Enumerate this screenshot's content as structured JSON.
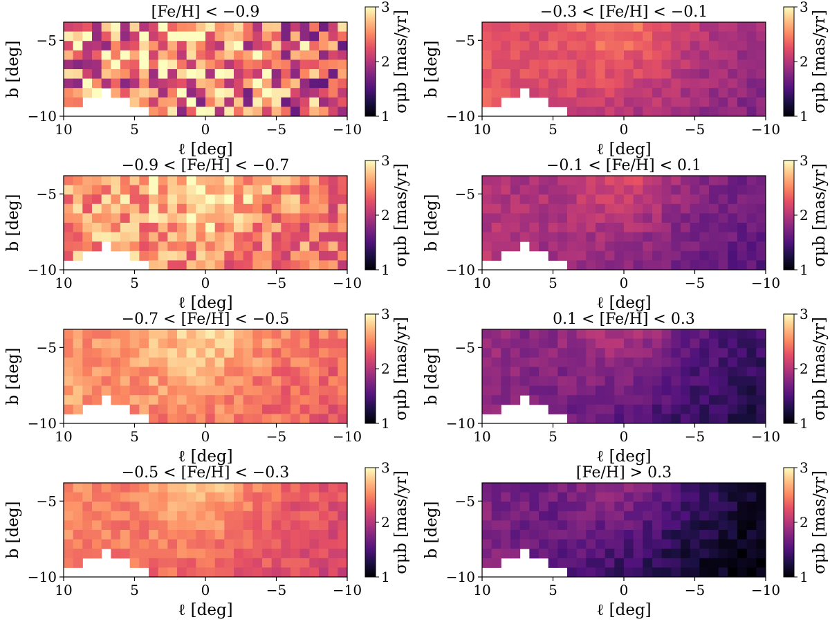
{
  "chart_data": [
    {
      "type": "heatmap",
      "title": "[Fe/H] < −0.9",
      "xlabel": "ℓ [deg]",
      "ylabel": "b [deg]",
      "xlim": [
        10,
        -10
      ],
      "ylim": [
        -10,
        -3.8
      ],
      "xticks": [
        "10",
        "5",
        "0",
        "−5",
        "−10"
      ],
      "yticks": [
        "−10",
        "−5"
      ],
      "colorbar": {
        "label": "σμb [mas/yr]",
        "range": [
          1,
          3
        ],
        "ticks": [
          "1",
          "2",
          "3"
        ],
        "colormap": "magma"
      },
      "grid": {
        "nx": 30,
        "ny": 10
      },
      "level": 2.5,
      "variability": 0.7,
      "right_decline": 0.3,
      "seed": 11,
      "missing_fraction": 0.0
    },
    {
      "type": "heatmap",
      "title": "−0.9 < [Fe/H] < −0.7",
      "xlabel": "ℓ [deg]",
      "ylabel": "b [deg]",
      "xlim": [
        10,
        -10
      ],
      "ylim": [
        -10,
        -3.8
      ],
      "xticks": [
        "10",
        "5",
        "0",
        "−5",
        "−10"
      ],
      "yticks": [
        "−10",
        "−5"
      ],
      "colorbar": {
        "label": "σμb [mas/yr]",
        "range": [
          1,
          3
        ],
        "ticks": [
          "1",
          "2",
          "3"
        ],
        "colormap": "magma"
      },
      "grid": {
        "nx": 30,
        "ny": 10
      },
      "level": 2.6,
      "variability": 0.35,
      "right_decline": 0.2,
      "seed": 23,
      "missing_fraction": 0.0
    },
    {
      "type": "heatmap",
      "title": "−0.7 < [Fe/H] < −0.5",
      "xlabel": "ℓ [deg]",
      "ylabel": "b [deg]",
      "xlim": [
        10,
        -10
      ],
      "ylim": [
        -10,
        -3.8
      ],
      "xticks": [
        "10",
        "5",
        "0",
        "−5",
        "−10"
      ],
      "yticks": [
        "−10",
        "−5"
      ],
      "colorbar": {
        "label": "σμb [mas/yr]",
        "range": [
          1,
          3
        ],
        "ticks": [
          "1",
          "2",
          "3"
        ],
        "colormap": "magma"
      },
      "grid": {
        "nx": 30,
        "ny": 10
      },
      "level": 2.6,
      "variability": 0.18,
      "right_decline": 0.3,
      "seed": 37,
      "missing_fraction": 0.0
    },
    {
      "type": "heatmap",
      "title": "−0.5 < [Fe/H] < −0.3",
      "xlabel": "ℓ [deg]",
      "ylabel": "b [deg]",
      "xlim": [
        10,
        -10
      ],
      "ylim": [
        -10,
        -3.8
      ],
      "xticks": [
        "10",
        "5",
        "0",
        "−5",
        "−10"
      ],
      "yticks": [
        "−10",
        "−5"
      ],
      "colorbar": {
        "label": "σμb [mas/yr]",
        "range": [
          1,
          3
        ],
        "ticks": [
          "1",
          "2",
          "3"
        ],
        "colormap": "magma"
      },
      "grid": {
        "nx": 30,
        "ny": 10
      },
      "level": 2.5,
      "variability": 0.14,
      "right_decline": 0.35,
      "seed": 41,
      "missing_fraction": 0.0
    },
    {
      "type": "heatmap",
      "title": "−0.3 < [Fe/H] < −0.1",
      "xlabel": "ℓ [deg]",
      "ylabel": "b [deg]",
      "xlim": [
        10,
        -10
      ],
      "ylim": [
        -10,
        -3.8
      ],
      "xticks": [
        "10",
        "5",
        "0",
        "−5",
        "−10"
      ],
      "yticks": [
        "−10",
        "−5"
      ],
      "colorbar": {
        "label": "σμb [mas/yr]",
        "range": [
          1,
          3
        ],
        "ticks": [
          "1",
          "2",
          "3"
        ],
        "colormap": "magma"
      },
      "grid": {
        "nx": 30,
        "ny": 10
      },
      "level": 2.3,
      "variability": 0.12,
      "right_decline": 0.55,
      "seed": 53,
      "missing_fraction": 0.0
    },
    {
      "type": "heatmap",
      "title": "−0.1 < [Fe/H] < 0.1",
      "xlabel": "ℓ [deg]",
      "ylabel": "b [deg]",
      "xlim": [
        10,
        -10
      ],
      "ylim": [
        -10,
        -3.8
      ],
      "xticks": [
        "10",
        "5",
        "0",
        "−5",
        "−10"
      ],
      "yticks": [
        "−10",
        "−5"
      ],
      "colorbar": {
        "label": "σμb [mas/yr]",
        "range": [
          1,
          3
        ],
        "ticks": [
          "1",
          "2",
          "3"
        ],
        "colormap": "magma"
      },
      "grid": {
        "nx": 30,
        "ny": 10
      },
      "level": 2.0,
      "variability": 0.12,
      "right_decline": 0.45,
      "seed": 67,
      "missing_fraction": 0.0
    },
    {
      "type": "heatmap",
      "title": "0.1 < [Fe/H] < 0.3",
      "xlabel": "ℓ [deg]",
      "ylabel": "b [deg]",
      "xlim": [
        10,
        -10
      ],
      "ylim": [
        -10,
        -3.8
      ],
      "xticks": [
        "10",
        "5",
        "0",
        "−5",
        "−10"
      ],
      "yticks": [
        "−10",
        "−5"
      ],
      "colorbar": {
        "label": "σμb [mas/yr]",
        "range": [
          1,
          3
        ],
        "ticks": [
          "1",
          "2",
          "3"
        ],
        "colormap": "magma"
      },
      "grid": {
        "nx": 30,
        "ny": 10
      },
      "level": 1.85,
      "variability": 0.12,
      "right_decline": 0.6,
      "seed": 79,
      "missing_fraction": 0.0
    },
    {
      "type": "heatmap",
      "title": "[Fe/H] > 0.3",
      "xlabel": "ℓ [deg]",
      "ylabel": "b [deg]",
      "xlim": [
        10,
        -10
      ],
      "ylim": [
        -10,
        -3.8
      ],
      "xticks": [
        "10",
        "5",
        "0",
        "−5",
        "−10"
      ],
      "yticks": [
        "−10",
        "−5"
      ],
      "colorbar": {
        "label": "σμb [mas/yr]",
        "range": [
          1,
          3
        ],
        "ticks": [
          "1",
          "2",
          "3"
        ],
        "colormap": "magma"
      },
      "grid": {
        "nx": 30,
        "ny": 10
      },
      "level": 1.75,
      "variability": 0.13,
      "right_decline": 0.75,
      "seed": 97,
      "missing_fraction": 0.0
    }
  ],
  "colors": {
    "background": "#ffffff",
    "axes": "#000000"
  }
}
